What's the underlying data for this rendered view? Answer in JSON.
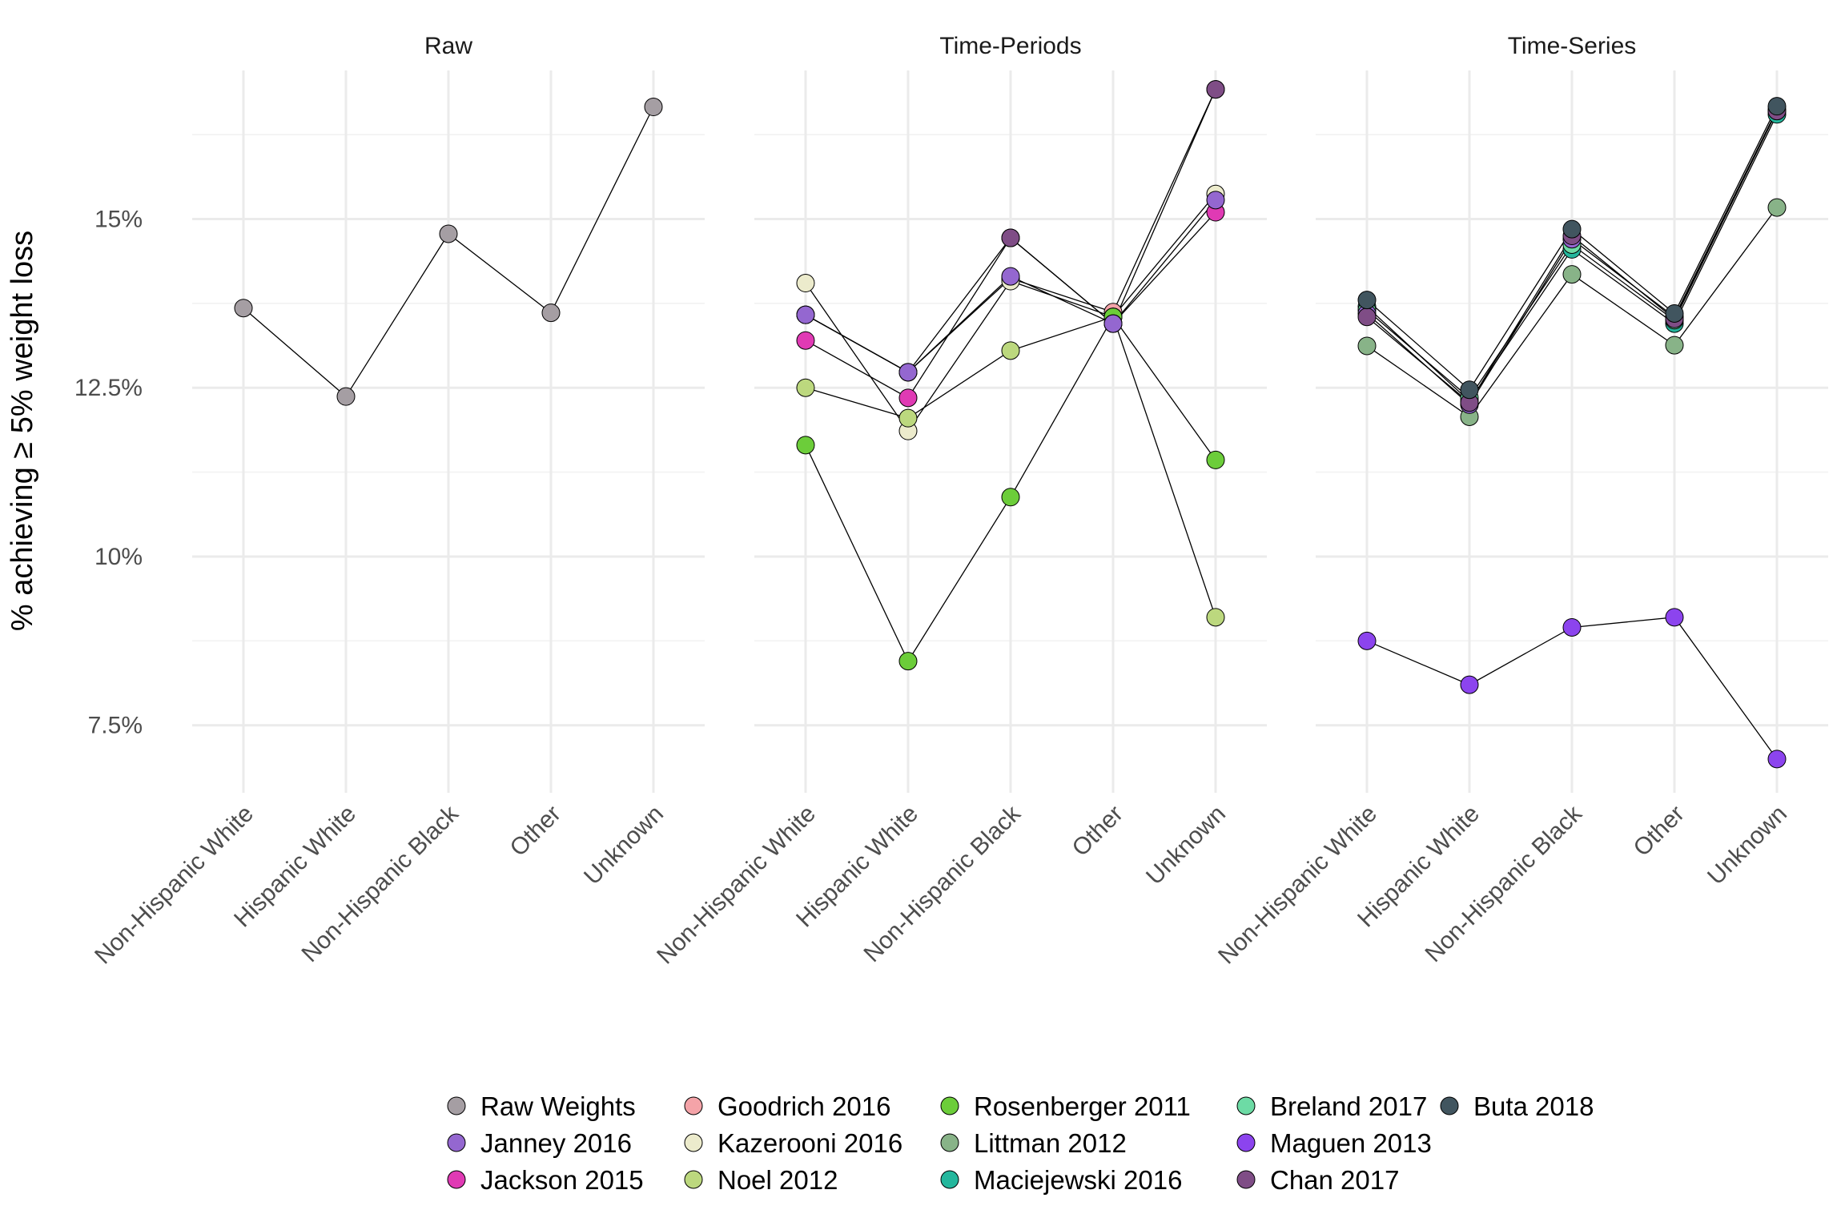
{
  "chart_data": {
    "type": "line",
    "ylabel": "% achieving ≥ 5% weight loss",
    "ylim": [
      6.5,
      17.2
    ],
    "y_ticks": [
      {
        "value": 7.5,
        "label": "7.5%"
      },
      {
        "value": 10,
        "label": "10%"
      },
      {
        "value": 12.5,
        "label": "12.5%"
      },
      {
        "value": 15,
        "label": "15%"
      }
    ],
    "categories": [
      "Non-Hispanic White",
      "Hispanic White",
      "Non-Hispanic Black",
      "Other",
      "Unknown"
    ],
    "legend_position": "bottom",
    "grid": true,
    "legend": [
      {
        "name": "Raw Weights",
        "color": "#a59ea3"
      },
      {
        "name": "Janney 2016",
        "color": "#9467d0"
      },
      {
        "name": "Jackson 2015",
        "color": "#e03ab4"
      },
      {
        "name": "Goodrich 2016",
        "color": "#f4a3a8"
      },
      {
        "name": "Kazerooni 2016",
        "color": "#ecebcc"
      },
      {
        "name": "Noel 2012",
        "color": "#bcd87e"
      },
      {
        "name": "Rosenberger 2011",
        "color": "#6ccd3a"
      },
      {
        "name": "Littman 2012",
        "color": "#88b388"
      },
      {
        "name": "Maciejewski 2016",
        "color": "#24b79d"
      },
      {
        "name": "Breland 2017",
        "color": "#6ddba5"
      },
      {
        "name": "Maguen 2013",
        "color": "#8c44ee"
      },
      {
        "name": "Chan 2017",
        "color": "#7f4d86"
      },
      {
        "name": "Buta 2018",
        "color": "#41555f"
      }
    ],
    "panels": [
      {
        "title": "Raw",
        "series": [
          {
            "name": "Raw Weights",
            "values": [
              13.68,
              12.37,
              14.78,
              13.61,
              16.66
            ]
          }
        ]
      },
      {
        "title": "Time-Periods",
        "series": [
          {
            "name": "Goodrich 2016",
            "values": [
              13.58,
              12.73,
              14.12,
              13.62,
              16.92
            ]
          },
          {
            "name": "Kazerooni 2016",
            "values": [
              14.05,
              11.86,
              14.08,
              13.55,
              15.37
            ]
          },
          {
            "name": "Noel 2012",
            "values": [
              12.5,
              12.05,
              13.05,
              13.55,
              9.1
            ]
          },
          {
            "name": "Rosenberger 2011",
            "values": [
              11.65,
              8.45,
              10.88,
              13.55,
              11.43
            ]
          },
          {
            "name": "Jackson 2015",
            "values": [
              13.2,
              12.35,
              14.72,
              13.45,
              15.1
            ]
          },
          {
            "name": "Chan 2017",
            "values": [
              13.58,
              12.73,
              14.72,
              13.45,
              16.92
            ]
          },
          {
            "name": "Janney 2016",
            "values": [
              13.58,
              12.73,
              14.15,
              13.45,
              15.28
            ]
          }
        ]
      },
      {
        "title": "Time-Series",
        "series": [
          {
            "name": "Littman 2012",
            "values": [
              13.12,
              12.07,
              14.18,
              13.13,
              15.17
            ]
          },
          {
            "name": "Maciejewski 2016",
            "values": [
              13.7,
              12.3,
              14.55,
              13.45,
              16.55
            ]
          },
          {
            "name": "Breland 2017",
            "values": [
              13.65,
              12.35,
              14.62,
              13.5,
              16.6
            ]
          },
          {
            "name": "Janney 2016",
            "values": [
              13.6,
              12.25,
              14.7,
              13.55,
              16.62
            ]
          },
          {
            "name": "Chan 2017",
            "values": [
              13.55,
              12.28,
              14.75,
              13.52,
              16.6
            ]
          },
          {
            "name": "Buta 2018",
            "values": [
              13.8,
              12.47,
              14.85,
              13.6,
              16.67
            ]
          },
          {
            "name": "Maguen 2013",
            "values": [
              8.75,
              8.1,
              8.95,
              9.1,
              7.0
            ]
          }
        ]
      }
    ]
  }
}
